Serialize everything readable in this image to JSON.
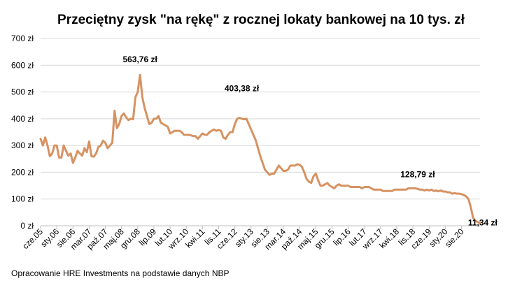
{
  "chart_data": {
    "type": "line",
    "title": "Przeciętny zysk \"na rękę\" z rocznej lokaty bankowej na 10 tys. zł",
    "xlabel": "",
    "ylabel": "",
    "ylim": [
      0,
      700
    ],
    "yticks": [
      "0 zł",
      "100 zł",
      "200 zł",
      "300 zł",
      "400 zł",
      "500 zł",
      "600 zł",
      "700 zł"
    ],
    "grid": true,
    "legend": "none",
    "colors": {
      "line": "#D69262",
      "grid": "#D9D9D9",
      "axis": "#BFBFBF"
    },
    "xticks": [
      {
        "label": "cze.05",
        "i": 0
      },
      {
        "label": "sty.06",
        "i": 7
      },
      {
        "label": "sie.06",
        "i": 14
      },
      {
        "label": "mar.07",
        "i": 21
      },
      {
        "label": "paź.07",
        "i": 28
      },
      {
        "label": "maj.08",
        "i": 35
      },
      {
        "label": "gru.08",
        "i": 42
      },
      {
        "label": "lip.09",
        "i": 49
      },
      {
        "label": "lut.10",
        "i": 56
      },
      {
        "label": "wrz.10",
        "i": 63
      },
      {
        "label": "kwi.11",
        "i": 70
      },
      {
        "label": "lis.11",
        "i": 77
      },
      {
        "label": "cze.12",
        "i": 84
      },
      {
        "label": "sty.13",
        "i": 91
      },
      {
        "label": "sie.13",
        "i": 98
      },
      {
        "label": "mar.14",
        "i": 105
      },
      {
        "label": "paź.14",
        "i": 112
      },
      {
        "label": "maj.15",
        "i": 119
      },
      {
        "label": "gru.15",
        "i": 126
      },
      {
        "label": "lip.16",
        "i": 133
      },
      {
        "label": "lut.17",
        "i": 140
      },
      {
        "label": "wrz.17",
        "i": 147
      },
      {
        "label": "kwi.18",
        "i": 154
      },
      {
        "label": "lis.18",
        "i": 161
      },
      {
        "label": "cze.19",
        "i": 168
      },
      {
        "label": "sty.20",
        "i": 175
      },
      {
        "label": "sie.20",
        "i": 182
      }
    ],
    "series": [
      {
        "values": [
          325,
          300,
          330,
          300,
          260,
          270,
          300,
          300,
          255,
          255,
          300,
          280,
          262,
          270,
          235,
          255,
          280,
          270,
          262,
          290,
          275,
          315,
          260,
          258,
          270,
          295,
          300,
          318,
          310,
          290,
          300,
          310,
          430,
          365,
          380,
          410,
          420,
          405,
          395,
          400,
          398,
          480,
          500,
          563.76,
          480,
          440,
          410,
          380,
          385,
          400,
          400,
          410,
          385,
          380,
          375,
          370,
          345,
          350,
          355,
          355,
          355,
          350,
          340,
          340,
          340,
          338,
          335,
          335,
          325,
          335,
          345,
          340,
          340,
          350,
          355,
          360,
          355,
          358,
          355,
          330,
          325,
          340,
          350,
          350,
          380,
          400,
          403.38,
          400,
          398,
          400,
          380,
          360,
          340,
          320,
          290,
          260,
          235,
          210,
          200,
          190,
          195,
          195,
          210,
          225,
          215,
          205,
          205,
          210,
          225,
          225,
          225,
          230,
          228,
          220,
          200,
          175,
          165,
          160,
          185,
          195,
          170,
          150,
          150,
          155,
          160,
          150,
          145,
          140,
          150,
          155,
          150,
          150,
          150,
          150,
          145,
          145,
          145,
          145,
          145,
          140,
          145,
          145,
          145,
          140,
          135,
          135,
          135,
          135,
          130,
          130,
          130,
          130,
          130,
          135,
          135,
          135,
          135,
          135,
          135,
          140,
          140,
          140,
          140,
          138,
          135,
          135,
          132,
          135,
          132,
          135,
          130,
          132,
          128.79,
          132,
          128,
          128,
          125,
          125,
          120,
          122,
          120,
          120,
          118,
          115,
          110,
          100,
          70,
          30,
          18,
          14,
          11.34
        ]
      }
    ],
    "annotations": [
      {
        "text": "563,76 zł",
        "i": 43,
        "value": 563.76
      },
      {
        "text": "403,38 zł",
        "i": 87,
        "value": 403.38
      },
      {
        "text": "128,79 zł",
        "i": 157,
        "value": 128.79
      },
      {
        "text": "11,34 zł",
        "i": 183,
        "value": 11.34
      }
    ]
  },
  "source_note": "Opracowanie HRE Investments na podstawie danych NBP"
}
